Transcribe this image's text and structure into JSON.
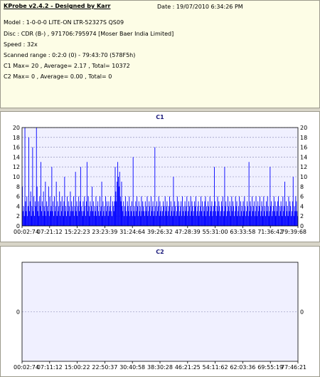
{
  "header": {
    "title": "KProbe v2.4.2 - Designed by Karr",
    "date": "Date : 19/07/2010 6:34:26 PM"
  },
  "info_lines": [
    "Model : 1-0-0-0 LITE-ON LTR-52327S     QS09",
    "Disc : CDR (B-) , 971706:795974 [Moser Baer India Limited]",
    "Speed : 32x",
    "Scanned range : 0:2:0 (0) - 79:43:70 (578F5h)",
    "C1 Max= 20 , Average= 2.17 , Total= 10372",
    "C2 Max= 0 , Average= 0.00 , Total= 0"
  ],
  "colors": {
    "plot_bg": "#f0f0ff",
    "bar": "#0000ff",
    "grid": "#8080b0"
  },
  "chart_data": [
    {
      "type": "bar",
      "title": "C1",
      "ylim": [
        0,
        20
      ],
      "yticks": [
        0,
        2,
        4,
        6,
        8,
        10,
        12,
        14,
        16,
        18,
        20
      ],
      "xticks": [
        "00:02:74",
        "07:21:12",
        "15:22:23",
        "23:23:39",
        "31:24:64",
        "39:26:32",
        "47:28:39",
        "55:31:00",
        "63:33:58",
        "71:36:42",
        "79:39:68"
      ],
      "grid": true,
      "summary": {
        "max": 20,
        "average": 2.17,
        "total": 10372
      },
      "values": [
        8,
        3,
        4,
        2,
        20,
        5,
        3,
        6,
        2,
        4,
        18,
        3,
        5,
        7,
        2,
        4,
        16,
        3,
        6,
        2,
        5,
        4,
        20,
        8,
        3,
        5,
        2,
        6,
        4,
        13,
        3,
        5,
        2,
        7,
        4,
        3,
        9,
        2,
        5,
        4,
        3,
        8,
        2,
        6,
        3,
        4,
        12,
        3,
        5,
        2,
        6,
        3,
        4,
        9,
        2,
        5,
        3,
        4,
        7,
        2,
        5,
        3,
        6,
        4,
        2,
        5,
        10,
        3,
        4,
        2,
        6,
        3,
        5,
        4,
        2,
        7,
        3,
        5,
        4,
        3,
        6,
        2,
        4,
        11,
        3,
        5,
        2,
        4,
        6,
        3,
        5,
        12,
        4,
        3,
        2,
        5,
        3,
        6,
        4,
        2,
        5,
        13,
        3,
        6,
        4,
        2,
        5,
        3,
        4,
        8,
        3,
        5,
        2,
        4,
        3,
        6,
        2,
        4,
        5,
        3,
        2,
        6,
        3,
        4,
        9,
        2,
        5,
        3,
        4,
        2,
        6,
        3,
        5,
        4,
        2,
        5,
        3,
        4,
        6,
        3,
        2,
        5,
        4,
        3,
        5,
        12,
        7,
        5,
        9,
        13,
        10,
        8,
        11,
        6,
        5,
        9,
        4,
        3,
        5,
        2,
        4,
        6,
        3,
        2,
        5,
        4,
        3,
        6,
        2,
        4,
        3,
        5,
        2,
        14,
        3,
        4,
        2,
        5,
        3,
        6,
        4,
        2,
        5,
        3,
        4,
        2,
        6,
        3,
        5,
        4,
        3,
        2,
        5,
        3,
        4,
        6,
        2,
        3,
        5,
        4,
        2,
        6,
        3,
        4,
        5,
        2,
        3,
        16,
        4,
        2,
        5,
        3,
        4,
        6,
        2,
        5,
        3,
        4,
        2,
        3,
        5,
        4,
        2,
        6,
        3,
        4,
        5,
        2,
        3,
        4,
        6,
        2,
        5,
        3,
        4,
        2,
        10,
        3,
        5,
        4,
        2,
        3,
        6,
        4,
        5,
        2,
        3,
        4,
        5,
        2,
        6,
        3,
        4,
        2,
        5,
        3,
        4,
        6,
        2,
        3,
        5,
        4,
        2,
        6,
        3,
        5,
        4,
        2,
        3,
        5,
        4,
        6,
        2,
        3,
        4,
        5,
        2,
        3,
        4,
        6,
        3,
        5,
        2,
        4,
        3,
        5,
        6,
        2,
        4,
        3,
        5,
        4,
        2,
        6,
        3,
        4,
        5,
        2,
        3,
        4,
        12,
        5,
        3,
        2,
        4,
        6,
        3,
        5,
        4,
        2,
        3,
        5,
        4,
        6,
        2,
        3,
        12,
        4,
        5,
        2,
        3,
        6,
        4,
        3,
        5,
        2,
        4,
        6,
        3,
        5,
        4,
        2,
        3,
        6,
        4,
        5,
        2,
        3,
        4,
        6,
        2,
        5,
        3,
        4,
        2,
        5,
        3,
        6,
        4,
        2,
        3,
        5,
        4,
        2,
        13,
        3,
        5,
        4,
        2,
        6,
        3,
        4,
        5,
        2,
        3,
        6,
        4,
        2,
        5,
        3,
        4,
        6,
        2,
        3,
        5,
        4,
        2,
        6,
        3,
        4,
        2,
        5,
        3,
        6,
        4,
        2,
        3,
        12,
        4,
        5,
        2,
        3,
        4,
        6,
        3,
        5,
        2,
        4,
        3,
        5,
        6,
        2,
        4,
        3,
        5,
        4,
        2,
        6,
        3,
        4,
        9,
        2,
        5,
        3,
        4,
        2,
        6,
        3,
        5,
        4,
        2,
        3,
        5,
        10,
        2,
        4,
        3,
        6,
        5,
        3,
        2
      ]
    },
    {
      "type": "bar",
      "title": "C2",
      "ylim": [
        -1,
        1
      ],
      "yticks": [
        0
      ],
      "xticks": [
        "00:02:74",
        "07:11:12",
        "15:00:22",
        "22:50:37",
        "30:40:58",
        "38:30:28",
        "46:21:25",
        "54:11:62",
        "62:03:36",
        "69:55:19",
        "77:46:21"
      ],
      "grid": true,
      "summary": {
        "max": 0,
        "average": 0.0,
        "total": 0
      },
      "values": []
    }
  ]
}
